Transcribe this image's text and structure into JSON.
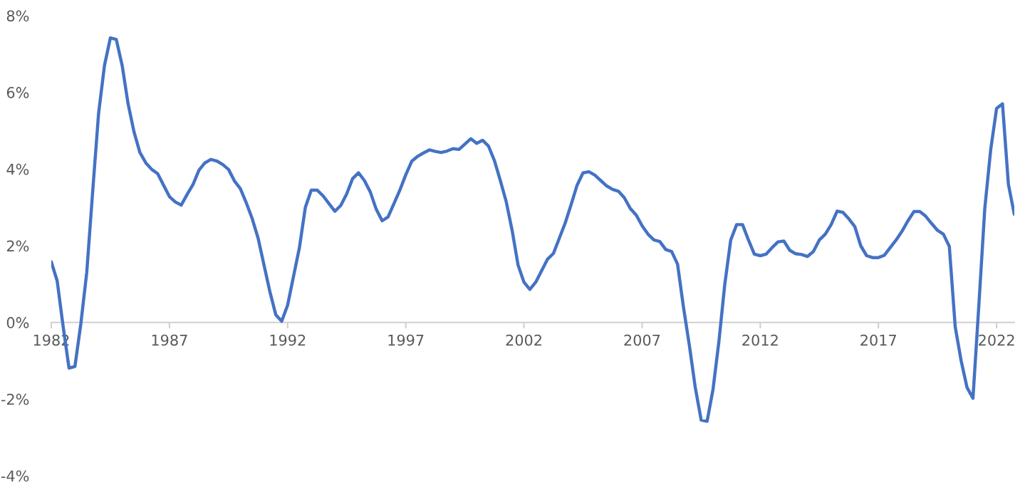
{
  "chart_data": {
    "type": "line",
    "series": [
      {
        "color": "#4472c4",
        "x": [
          1982,
          1982.25,
          1982.5,
          1982.75,
          1983,
          1983.25,
          1983.5,
          1983.75,
          1984,
          1984.25,
          1984.5,
          1984.75,
          1985,
          1985.25,
          1985.5,
          1985.75,
          1986,
          1986.25,
          1986.5,
          1986.75,
          1987,
          1987.25,
          1987.5,
          1987.75,
          1988,
          1988.25,
          1988.5,
          1988.75,
          1989,
          1989.25,
          1989.5,
          1989.75,
          1990,
          1990.25,
          1990.5,
          1990.75,
          1991,
          1991.25,
          1991.5,
          1991.75,
          1992,
          1992.25,
          1992.5,
          1992.75,
          1993,
          1993.25,
          1993.5,
          1993.75,
          1994,
          1994.25,
          1994.5,
          1994.75,
          1995,
          1995.25,
          1995.5,
          1995.75,
          1996,
          1996.25,
          1996.5,
          1996.75,
          1997,
          1997.25,
          1997.5,
          1997.75,
          1998,
          1998.25,
          1998.5,
          1998.75,
          1999,
          1999.25,
          1999.5,
          1999.75,
          2000,
          2000.25,
          2000.5,
          2000.75,
          2001,
          2001.25,
          2001.5,
          2001.75,
          2002,
          2002.25,
          2002.5,
          2002.75,
          2003,
          2003.25,
          2003.5,
          2003.75,
          2004,
          2004.25,
          2004.5,
          2004.75,
          2005,
          2005.25,
          2005.5,
          2005.75,
          2006,
          2006.25,
          2006.5,
          2006.75,
          2007,
          2007.25,
          2007.5,
          2007.75,
          2008,
          2008.25,
          2008.5,
          2008.75,
          2009,
          2009.25,
          2009.5,
          2009.75,
          2010,
          2010.25,
          2010.5,
          2010.75,
          2011,
          2011.25,
          2011.5,
          2011.75,
          2012,
          2012.25,
          2012.5,
          2012.75,
          2013,
          2013.25,
          2013.5,
          2013.75,
          2014,
          2014.25,
          2014.5,
          2014.75,
          2015,
          2015.25,
          2015.5,
          2015.75,
          2016,
          2016.25,
          2016.5,
          2016.75,
          2017,
          2017.25,
          2017.5,
          2017.75,
          2018,
          2018.25,
          2018.5,
          2018.75,
          2019,
          2019.25,
          2019.5,
          2019.75,
          2020,
          2020.25,
          2020.5,
          2020.75,
          2021,
          2021.25,
          2021.5,
          2021.75,
          2022,
          2022.25,
          2022.5,
          2022.75
        ],
        "values": [
          1.58,
          1.08,
          -0.1,
          -1.19,
          -1.15,
          -0.04,
          1.3,
          3.4,
          5.44,
          6.7,
          7.42,
          7.38,
          6.7,
          5.7,
          4.97,
          4.43,
          4.16,
          3.99,
          3.88,
          3.58,
          3.28,
          3.14,
          3.06,
          3.34,
          3.6,
          3.97,
          4.16,
          4.25,
          4.21,
          4.12,
          3.99,
          3.69,
          3.49,
          3.12,
          2.71,
          2.2,
          1.5,
          0.8,
          0.2,
          0.03,
          0.45,
          1.2,
          1.95,
          3.0,
          3.45,
          3.45,
          3.3,
          3.1,
          2.9,
          3.05,
          3.35,
          3.75,
          3.9,
          3.7,
          3.4,
          2.95,
          2.65,
          2.75,
          3.1,
          3.45,
          3.85,
          4.2,
          4.33,
          4.42,
          4.5,
          4.46,
          4.43,
          4.47,
          4.53,
          4.51,
          4.65,
          4.79,
          4.67,
          4.75,
          4.6,
          4.22,
          3.7,
          3.15,
          2.4,
          1.5,
          1.05,
          0.86,
          1.05,
          1.35,
          1.65,
          1.8,
          2.2,
          2.6,
          3.08,
          3.58,
          3.9,
          3.93,
          3.84,
          3.7,
          3.56,
          3.47,
          3.42,
          3.25,
          2.97,
          2.8,
          2.52,
          2.3,
          2.15,
          2.11,
          1.9,
          1.85,
          1.52,
          0.4,
          -0.6,
          -1.7,
          -2.55,
          -2.58,
          -1.75,
          -0.5,
          1.0,
          2.15,
          2.55,
          2.55,
          2.15,
          1.78,
          1.74,
          1.78,
          1.95,
          2.1,
          2.12,
          1.88,
          1.79,
          1.77,
          1.72,
          1.85,
          2.15,
          2.3,
          2.55,
          2.9,
          2.87,
          2.7,
          2.5,
          2.0,
          1.74,
          1.69,
          1.69,
          1.75,
          1.95,
          2.15,
          2.38,
          2.65,
          2.89,
          2.89,
          2.77,
          2.58,
          2.4,
          2.3,
          1.98,
          -0.12,
          -1.0,
          -1.7,
          -1.98,
          0.45,
          2.97,
          4.5,
          5.58,
          5.7,
          3.6,
          2.82
        ]
      }
    ],
    "xlim": [
      1982,
      2022.75
    ],
    "xticks": [
      1982,
      1987,
      1992,
      1997,
      2002,
      2007,
      2012,
      2017,
      2022
    ],
    "ylim": [
      -4,
      8
    ],
    "yticks": [
      {
        "value": -4,
        "label": "-4%"
      },
      {
        "value": -2,
        "label": "-2%"
      },
      {
        "value": 0,
        "label": "0%"
      },
      {
        "value": 2,
        "label": "2%"
      },
      {
        "value": 4,
        "label": "4%"
      },
      {
        "value": 6,
        "label": "6%"
      },
      {
        "value": 8,
        "label": "8%"
      }
    ],
    "grid": false,
    "legend": false,
    "marker": "none",
    "line_style": "solid"
  }
}
